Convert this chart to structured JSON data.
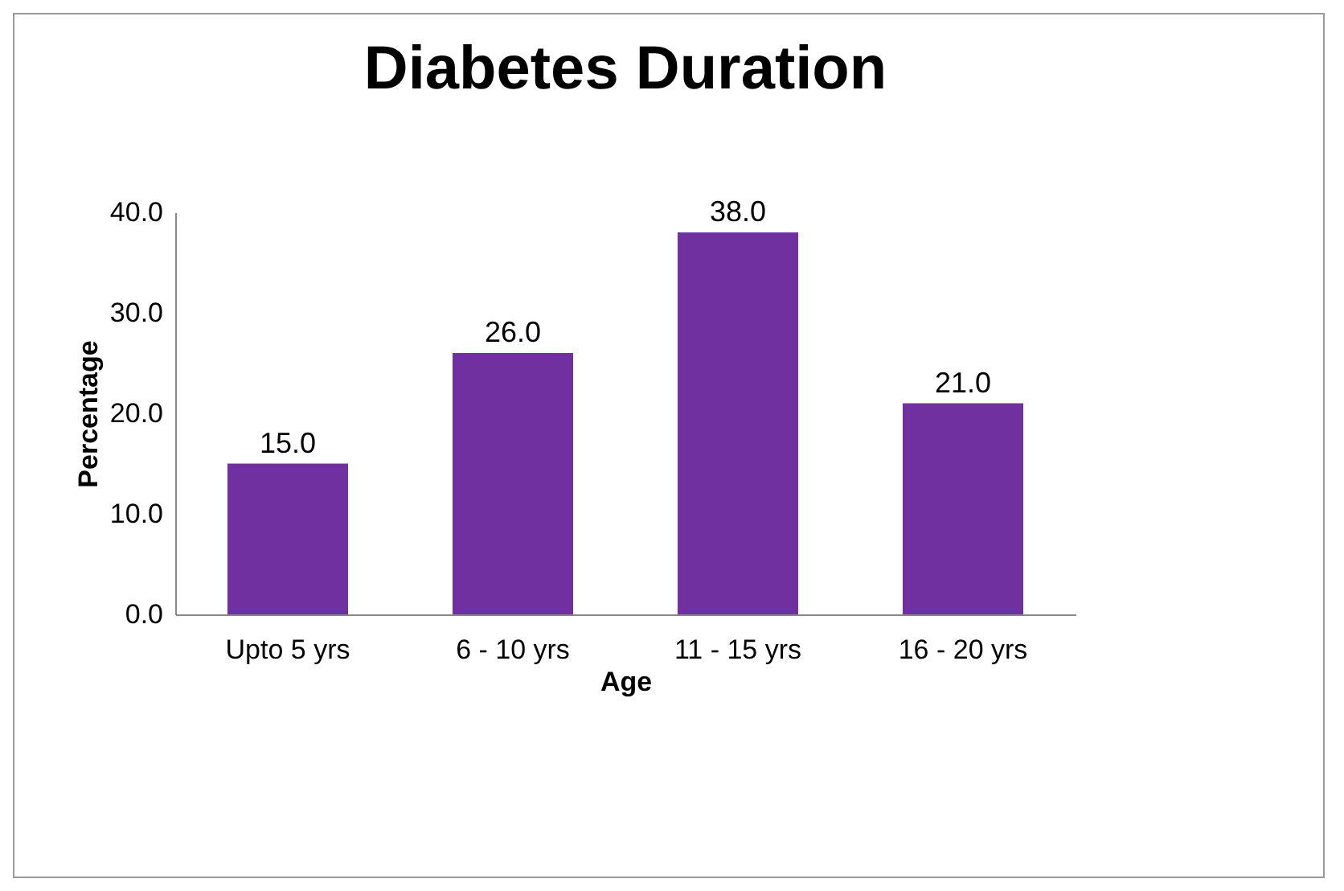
{
  "chart_data": {
    "type": "bar",
    "title": "Diabetes Duration",
    "xlabel": "Age",
    "ylabel": "Percentage",
    "categories": [
      "Upto 5 yrs",
      "6 - 10 yrs",
      "11 - 15 yrs",
      "16 - 20 yrs"
    ],
    "values": [
      15,
      26,
      38,
      21
    ],
    "color": "#7030a0",
    "value_labels": [
      "15.0",
      "26.0",
      "38.0",
      "21.0"
    ],
    "ylim": [
      0,
      40
    ],
    "yticks": [
      {
        "value": 0,
        "label": "0.0"
      },
      {
        "value": 10,
        "label": "10.0"
      },
      {
        "value": 20,
        "label": "20.0"
      },
      {
        "value": 30,
        "label": "30.0"
      },
      {
        "value": 40,
        "label": "40.0"
      }
    ],
    "grid": false
  }
}
